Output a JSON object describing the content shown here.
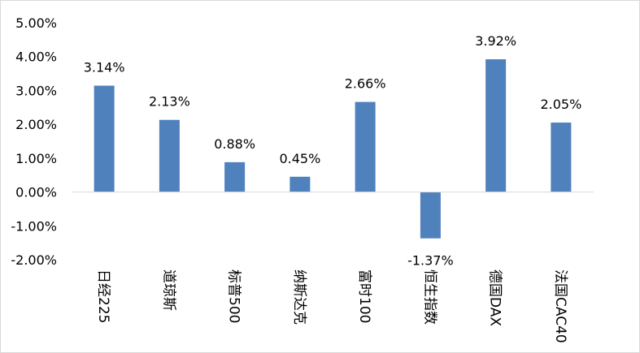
{
  "chart_data": {
    "type": "bar",
    "categories": [
      "日经225",
      "道琼斯",
      "标普500",
      "纳斯达克",
      "富时100",
      "恒生指数",
      "德国DAX",
      "法国CAC40"
    ],
    "values": [
      3.14,
      2.13,
      0.88,
      0.45,
      2.66,
      -1.37,
      3.92,
      2.05
    ],
    "data_labels": [
      "3.14%",
      "2.13%",
      "0.88%",
      "0.45%",
      "2.66%",
      "-1.37%",
      "3.92%",
      "2.05%"
    ],
    "ylim": [
      -2,
      5
    ],
    "yticks": [
      5,
      4,
      3,
      2,
      1,
      0,
      -1,
      -2
    ],
    "ytick_labels": [
      "5.00%",
      "4.00%",
      "3.00%",
      "2.00%",
      "1.00%",
      "0.00%",
      "-1.00%",
      "-2.00%"
    ],
    "title": "",
    "xlabel": "",
    "ylabel": "",
    "grid": false,
    "legend": "none",
    "bar_color": "#4f81bd",
    "axis_color": "#d9d9d9"
  }
}
